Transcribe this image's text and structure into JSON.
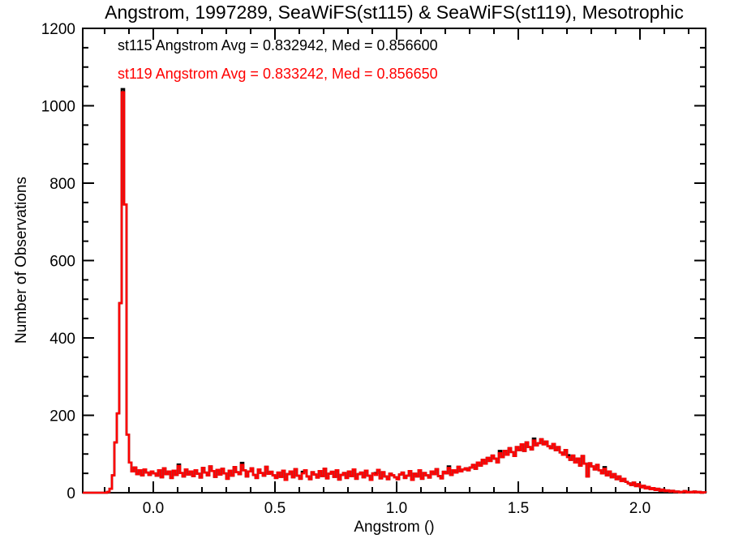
{
  "title": "Angstrom, 1997289, SeaWiFS(st115) & SeaWiFS(st119), Mesotrophic",
  "legend": {
    "st115_label": "st115 Angstrom Avg = 0.832942, Med = 0.856600",
    "st119_label": "st119 Angstrom Avg = 0.833242, Med = 0.856650"
  },
  "colors": {
    "background": "#ffffff",
    "axis": "#000000",
    "st115": "#000000",
    "st119": "#ff0000"
  },
  "chart_data": {
    "type": "histogram-step",
    "title": "Angstrom, 1997289, SeaWiFS(st115) & SeaWiFS(st119), Mesotrophic",
    "xlabel": "Angstrom ()",
    "ylabel": "Number of Observations",
    "xlim": [
      -0.29,
      2.27
    ],
    "ylim": [
      0,
      1200
    ],
    "grid": false,
    "legend_position": "top-left-inside",
    "x_major_ticks": [
      0.0,
      0.5,
      1.0,
      1.5,
      2.0
    ],
    "x_major_tick_labels": [
      "0.0",
      "0.5",
      "1.0",
      "1.5",
      "2.0"
    ],
    "x_minor_tick_step": 0.1,
    "y_major_ticks": [
      0,
      200,
      400,
      600,
      800,
      1000,
      1200
    ],
    "y_major_tick_labels": [
      "0",
      "200",
      "400",
      "600",
      "800",
      "1000",
      "1200"
    ],
    "y_minor_tick_step": 50,
    "bins": {
      "start": -0.29,
      "width": 0.01,
      "count": 256
    },
    "series": [
      {
        "name": "st115",
        "stats": {
          "avg": 0.832942,
          "med": 0.8566
        },
        "color": "#000000",
        "counts_same_as": "st119",
        "counts_delta": {
          "16": 8,
          "39": 4,
          "65": 5,
          "90": 4,
          "120": 5,
          "150": 4,
          "171": 6,
          "185": 5,
          "199": 5,
          "214": 4
        }
      },
      {
        "name": "st119",
        "stats": {
          "avg": 0.833242,
          "med": 0.85665
        },
        "color": "#ff0000",
        "counts": [
          0,
          0,
          0,
          0,
          0,
          0,
          0,
          0,
          0,
          0,
          2,
          10,
          45,
          130,
          205,
          490,
          1035,
          745,
          150,
          78,
          55,
          65,
          48,
          58,
          45,
          60,
          52,
          46,
          55,
          50,
          44,
          58,
          40,
          63,
          48,
          55,
          38,
          57,
          46,
          69,
          51,
          42,
          60,
          47,
          55,
          43,
          58,
          49,
          39,
          64,
          52,
          45,
          68,
          56,
          41,
          59,
          47,
          62,
          50,
          36,
          57,
          44,
          66,
          53,
          48,
          72,
          58,
          42,
          55,
          63,
          46,
          38,
          60,
          51,
          44,
          67,
          49,
          54,
          45,
          38,
          52,
          41,
          57,
          33,
          48,
          55,
          40,
          61,
          44,
          36,
          50,
          58,
          42,
          35,
          53,
          47,
          39,
          56,
          43,
          62,
          37,
          49,
          54,
          41,
          58,
          34,
          46,
          51,
          38,
          55,
          43,
          60,
          36,
          48,
          52,
          40,
          57,
          44,
          33,
          50,
          46,
          59,
          37,
          53,
          42,
          35,
          49,
          45,
          40,
          35,
          47,
          52,
          38,
          44,
          56,
          33,
          49,
          42,
          58,
          36,
          51,
          45,
          39,
          55,
          48,
          61,
          43,
          37,
          54,
          50,
          64,
          46,
          58,
          52,
          67,
          55,
          60,
          63,
          58,
          65,
          72,
          62,
          78,
          70,
          85,
          75,
          90,
          82,
          96,
          88,
          78,
          102,
          92,
          108,
          98,
          115,
          105,
          95,
          118,
          110,
          125,
          108,
          130,
          118,
          112,
          135,
          122,
          128,
          138,
          125,
          132,
          120,
          115,
          126,
          110,
          118,
          104,
          98,
          110,
          92,
          85,
          96,
          78,
          88,
          70,
          95,
          75,
          42,
          76,
          68,
          60,
          72,
          58,
          50,
          62,
          45,
          55,
          40,
          48,
          35,
          42,
          30,
          36,
          28,
          24,
          20,
          26,
          17,
          22,
          14,
          18,
          11,
          15,
          9,
          12,
          7,
          10,
          5,
          8,
          4,
          6,
          3,
          5,
          2,
          3,
          1,
          2,
          4,
          1,
          2,
          1,
          3,
          1,
          2,
          0,
          1
        ]
      }
    ]
  }
}
